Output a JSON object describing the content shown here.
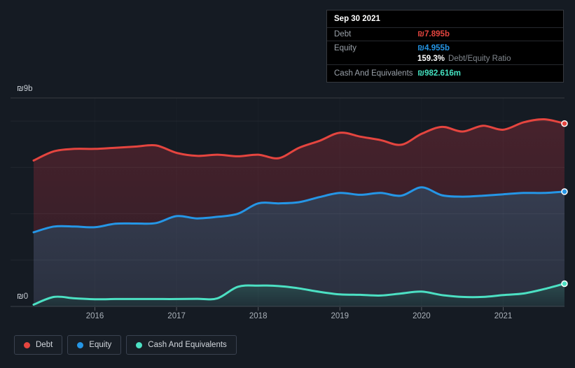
{
  "axis": {
    "y_top": "₪9b",
    "y_bottom": "₪0",
    "years": [
      "2016",
      "2017",
      "2018",
      "2019",
      "2020",
      "2021"
    ]
  },
  "tooltip": {
    "date": "Sep 30 2021",
    "debt_label": "Debt",
    "debt_value": "₪7.895b",
    "equity_label": "Equity",
    "equity_value": "₪4.955b",
    "ratio_value": "159.3%",
    "ratio_label": "Debt/Equity Ratio",
    "cash_label": "Cash And Equivalents",
    "cash_value": "₪982.616m"
  },
  "legend": [
    {
      "label": "Debt",
      "color": "#e5453f"
    },
    {
      "label": "Equity",
      "color": "#2596e6"
    },
    {
      "label": "Cash And Equivalents",
      "color": "#4ce0c3"
    }
  ],
  "chart_data": {
    "type": "area",
    "title": "",
    "xlabel": "",
    "ylabel": "",
    "currency": "₪",
    "unit": "billions",
    "xlim": [
      2015.25,
      2021.75
    ],
    "ylim": [
      0,
      9
    ],
    "x_ticks": [
      2016,
      2017,
      2018,
      2019,
      2020,
      2021
    ],
    "y_gridlines": [
      2,
      4,
      6,
      8
    ],
    "y_tick_labels": {
      "top": "₪9b",
      "bottom": "₪0"
    },
    "legend_position": "bottom",
    "grid": true,
    "x": [
      2015.25,
      2015.5,
      2015.75,
      2016,
      2016.25,
      2016.5,
      2016.75,
      2017,
      2017.25,
      2017.5,
      2017.75,
      2018,
      2018.25,
      2018.5,
      2018.75,
      2019,
      2019.25,
      2019.5,
      2019.75,
      2020,
      2020.25,
      2020.5,
      2020.75,
      2021,
      2021.25,
      2021.5,
      2021.75
    ],
    "series": [
      {
        "name": "Debt",
        "color": "#e5453f",
        "fill_top": "#47222c",
        "fill_bottom": "#391f29",
        "last_label": "₪7.895b",
        "values": [
          6.3,
          6.7,
          6.8,
          6.8,
          6.85,
          6.9,
          6.95,
          6.63,
          6.5,
          6.55,
          6.48,
          6.55,
          6.4,
          6.85,
          7.15,
          7.5,
          7.33,
          7.18,
          6.98,
          7.45,
          7.75,
          7.55,
          7.8,
          7.63,
          7.95,
          8.08,
          7.895
        ]
      },
      {
        "name": "Equity",
        "color": "#2596e6",
        "fill_top": "#363d50",
        "fill_bottom": "#2a303f",
        "last_label": "₪4.955b",
        "values": [
          3.2,
          3.45,
          3.45,
          3.42,
          3.57,
          3.58,
          3.6,
          3.9,
          3.8,
          3.87,
          4.0,
          4.45,
          4.45,
          4.5,
          4.72,
          4.9,
          4.82,
          4.9,
          4.78,
          5.14,
          4.8,
          4.74,
          4.78,
          4.84,
          4.9,
          4.9,
          4.955
        ]
      },
      {
        "name": "Cash And Equivalents",
        "color": "#4ce0c3",
        "fill_top": "#2b4b4e",
        "fill_bottom": "#203038",
        "last_label": "₪982.616m",
        "values": [
          0.08,
          0.41,
          0.35,
          0.31,
          0.32,
          0.32,
          0.32,
          0.32,
          0.33,
          0.35,
          0.85,
          0.9,
          0.88,
          0.78,
          0.63,
          0.52,
          0.5,
          0.47,
          0.56,
          0.64,
          0.49,
          0.41,
          0.41,
          0.49,
          0.56,
          0.75,
          0.983
        ]
      }
    ]
  }
}
